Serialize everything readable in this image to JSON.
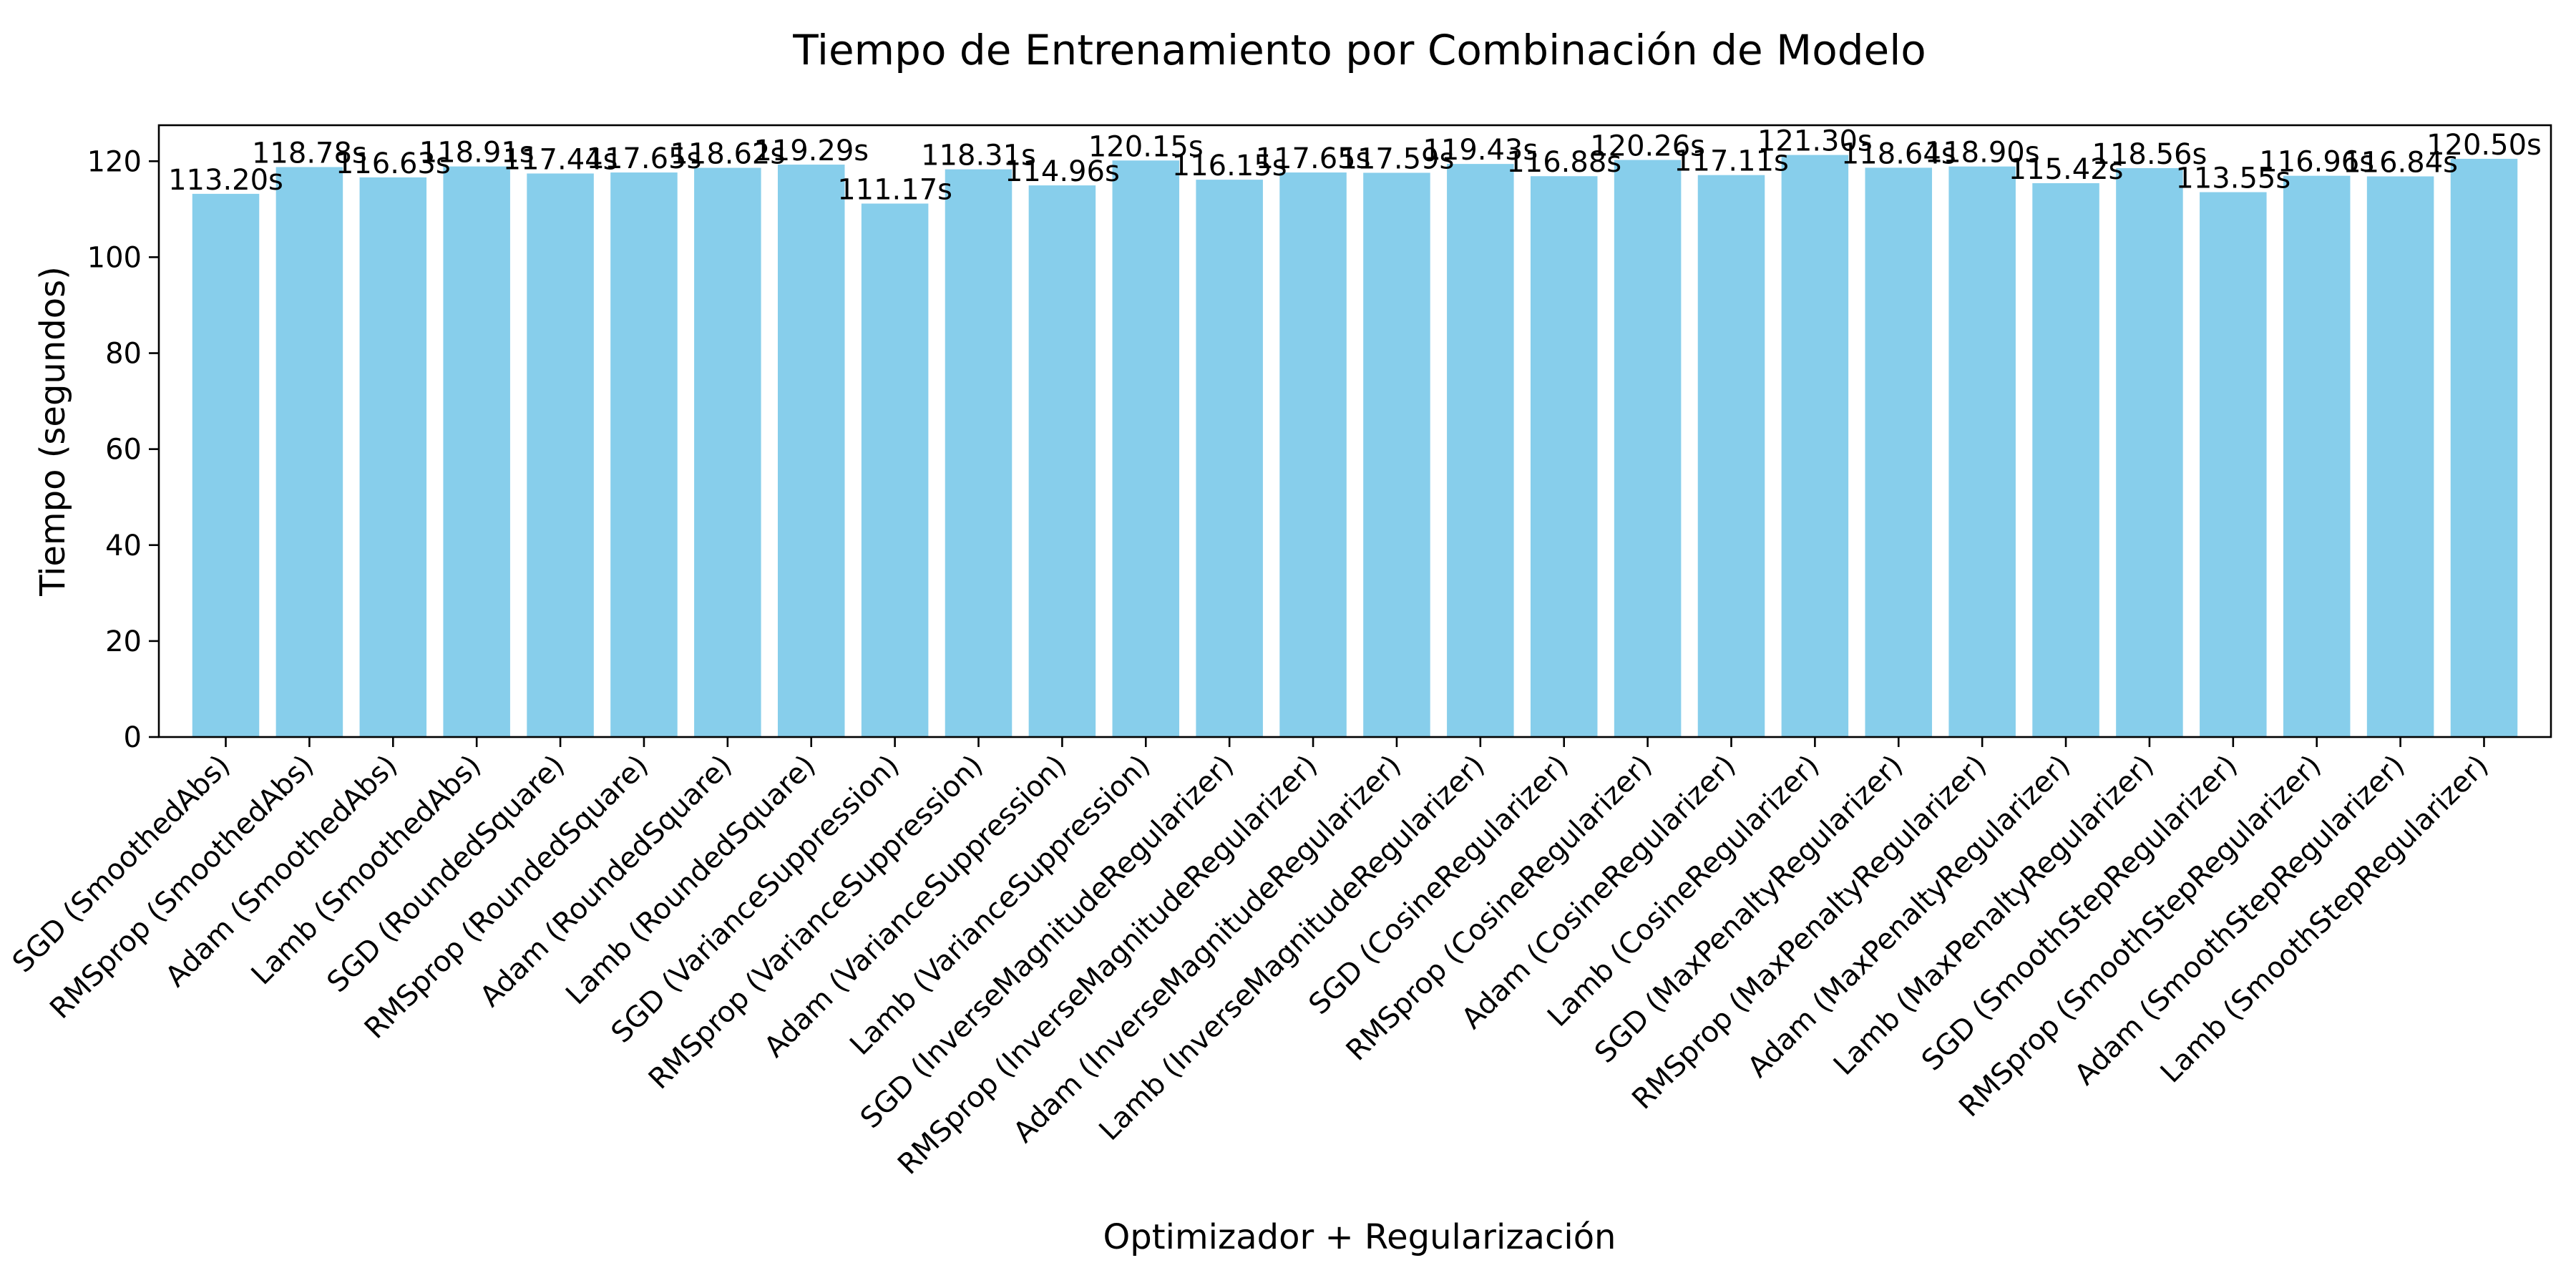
{
  "chart_data": {
    "type": "bar",
    "title": "Tiempo de Entrenamiento por Combinación de Modelo",
    "xlabel": "Optimizador + Regularización",
    "ylabel": "Tiempo (segundos)",
    "ylim": [
      0,
      127.5
    ],
    "yticks": [
      0,
      20,
      40,
      60,
      80,
      100,
      120
    ],
    "grid": false,
    "bar_color": "#87CEEB",
    "value_suffix": "s",
    "categories": [
      "SGD (SmoothedAbs)",
      "RMSprop (SmoothedAbs)",
      "Adam (SmoothedAbs)",
      "Lamb (SmoothedAbs)",
      "SGD (RoundedSquare)",
      "RMSprop (RoundedSquare)",
      "Adam (RoundedSquare)",
      "Lamb (RoundedSquare)",
      "SGD (VarianceSuppression)",
      "RMSprop (VarianceSuppression)",
      "Adam (VarianceSuppression)",
      "Lamb (VarianceSuppression)",
      "SGD (InverseMagnitudeRegularizer)",
      "RMSprop (InverseMagnitudeRegularizer)",
      "Adam (InverseMagnitudeRegularizer)",
      "Lamb (InverseMagnitudeRegularizer)",
      "SGD (CosineRegularizer)",
      "RMSprop (CosineRegularizer)",
      "Adam (CosineRegularizer)",
      "Lamb (CosineRegularizer)",
      "SGD (MaxPenaltyRegularizer)",
      "RMSprop (MaxPenaltyRegularizer)",
      "Adam (MaxPenaltyRegularizer)",
      "Lamb (MaxPenaltyRegularizer)",
      "SGD (SmoothStepRegularizer)",
      "RMSprop (SmoothStepRegularizer)",
      "Adam (SmoothStepRegularizer)",
      "Lamb (SmoothStepRegularizer)"
    ],
    "values": [
      113.2,
      118.78,
      116.63,
      118.91,
      117.44,
      117.65,
      118.62,
      119.29,
      111.17,
      118.31,
      114.96,
      120.15,
      116.15,
      117.65,
      117.59,
      119.43,
      116.88,
      120.26,
      117.11,
      121.3,
      118.64,
      118.9,
      115.42,
      118.56,
      113.55,
      116.96,
      116.84,
      120.5
    ],
    "data_labels": [
      "113.20s",
      "118.78s",
      "116.63s",
      "118.91s",
      "117.44s",
      "117.65s",
      "118.62s",
      "119.29s",
      "111.17s",
      "118.31s",
      "114.96s",
      "120.15s",
      "116.15s",
      "117.65s",
      "117.59s",
      "119.43s",
      "116.88s",
      "120.26s",
      "117.11s",
      "121.30s",
      "118.64s",
      "118.90s",
      "115.42s",
      "118.56s",
      "113.55s",
      "116.96s",
      "116.84s",
      "120.50s"
    ]
  }
}
